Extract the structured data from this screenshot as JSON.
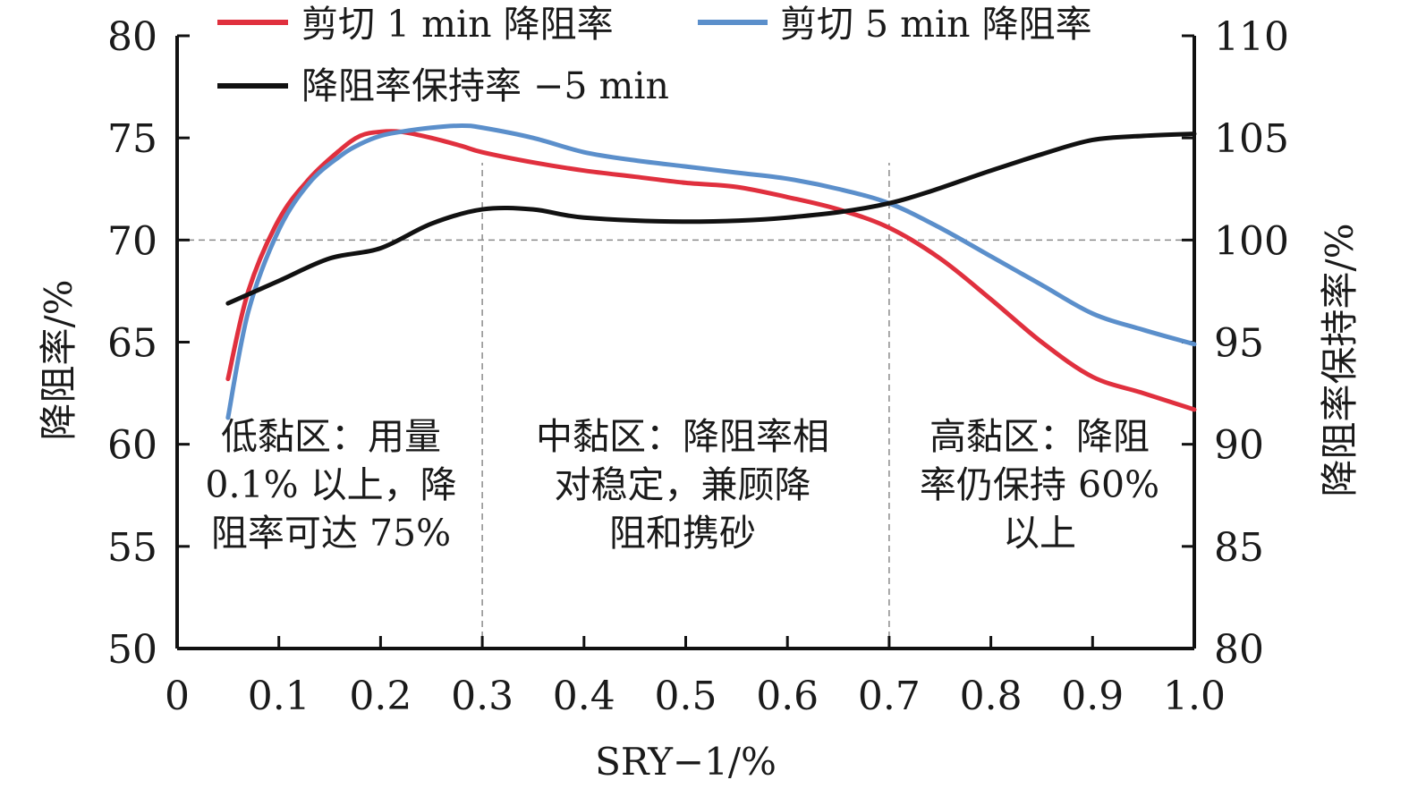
{
  "chart_data": {
    "type": "line",
    "xlabel": "SRY−1/%",
    "ylabel_left": "降阻率/%",
    "ylabel_right": "降阻率保持率/%",
    "xlim": [
      0,
      1.0
    ],
    "ylim_left": [
      50,
      80
    ],
    "ylim_right": [
      80,
      110
    ],
    "x_ticks": [
      "0",
      "0.1",
      "0.2",
      "0.3",
      "0.4",
      "0.5",
      "0.6",
      "0.7",
      "0.8",
      "0.9",
      "1.0"
    ],
    "y_left_ticks": [
      "50",
      "55",
      "60",
      "65",
      "70",
      "75",
      "80"
    ],
    "y_right_ticks": [
      "80",
      "85",
      "90",
      "95",
      "100",
      "105",
      "110"
    ],
    "guides": {
      "x": [
        0.3,
        0.7
      ],
      "y_left": 70
    },
    "series": [
      {
        "name": "剪切 1 min 降阻率",
        "axis": "left",
        "color": "#e0303e",
        "x": [
          0.05,
          0.07,
          0.1,
          0.13,
          0.16,
          0.18,
          0.2,
          0.22,
          0.25,
          0.28,
          0.3,
          0.35,
          0.4,
          0.45,
          0.5,
          0.55,
          0.6,
          0.65,
          0.7,
          0.75,
          0.8,
          0.85,
          0.9,
          0.95,
          1.0
        ],
        "y": [
          63.2,
          67.5,
          71.0,
          73.0,
          74.4,
          75.1,
          75.3,
          75.3,
          75.0,
          74.6,
          74.3,
          73.8,
          73.4,
          73.1,
          72.8,
          72.6,
          72.1,
          71.5,
          70.6,
          69.1,
          67.1,
          65.0,
          63.3,
          62.5,
          61.7
        ]
      },
      {
        "name": "剪切 5 min 降阻率",
        "axis": "left",
        "color": "#5b8fcb",
        "x": [
          0.05,
          0.07,
          0.1,
          0.13,
          0.16,
          0.18,
          0.2,
          0.22,
          0.25,
          0.28,
          0.3,
          0.35,
          0.4,
          0.45,
          0.5,
          0.55,
          0.6,
          0.65,
          0.7,
          0.75,
          0.8,
          0.85,
          0.9,
          0.95,
          1.0
        ],
        "y": [
          61.3,
          66.5,
          70.5,
          72.8,
          74.1,
          74.7,
          75.1,
          75.3,
          75.5,
          75.6,
          75.5,
          75.0,
          74.3,
          73.9,
          73.6,
          73.3,
          73.0,
          72.5,
          71.8,
          70.6,
          69.2,
          67.8,
          66.4,
          65.6,
          64.9
        ]
      },
      {
        "name": "降阻率保持率 −5 min",
        "axis": "right",
        "color": "#111111",
        "x": [
          0.05,
          0.1,
          0.15,
          0.2,
          0.25,
          0.3,
          0.35,
          0.4,
          0.5,
          0.6,
          0.7,
          0.8,
          0.85,
          0.9,
          0.95,
          1.0
        ],
        "y": [
          96.9,
          98.0,
          99.1,
          99.6,
          100.8,
          101.5,
          101.5,
          101.1,
          100.9,
          101.1,
          101.8,
          103.4,
          104.2,
          104.9,
          105.1,
          105.2
        ]
      }
    ],
    "annotations": [
      {
        "region": "low",
        "lines": [
          "低黏区：用量",
          "0.1% 以上，降",
          "阻率可达 75%"
        ]
      },
      {
        "region": "mid",
        "lines": [
          "中黏区：降阻率相",
          "对稳定，兼顾降",
          "阻和携砂"
        ]
      },
      {
        "region": "high",
        "lines": [
          "高黏区：降阻",
          "率仍保持 60%",
          "以上"
        ]
      }
    ]
  }
}
